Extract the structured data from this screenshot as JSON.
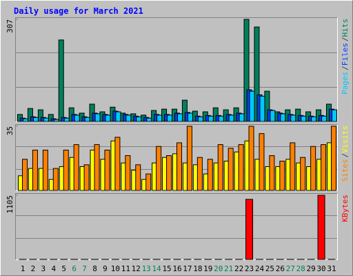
{
  "chart_data": [
    {
      "type": "bar",
      "title": "Daily usage for March 2021",
      "categories": [
        "1",
        "2",
        "3",
        "4",
        "5",
        "6",
        "7",
        "8",
        "9",
        "10",
        "11",
        "12",
        "13",
        "14",
        "15",
        "16",
        "17",
        "18",
        "19",
        "20",
        "21",
        "22",
        "23",
        "24",
        "25",
        "26",
        "27",
        "28",
        "29",
        "30",
        "31"
      ],
      "category_colors": [
        "#000000",
        "#000000",
        "#000000",
        "#000000",
        "#000000",
        "#00805c",
        "#00805c",
        "#000000",
        "#000000",
        "#000000",
        "#000000",
        "#000000",
        "#00805c",
        "#00805c",
        "#000000",
        "#000000",
        "#000000",
        "#000000",
        "#000000",
        "#00805c",
        "#00805c",
        "#000000",
        "#000000",
        "#000000",
        "#000000",
        "#000000",
        "#00805c",
        "#00805c",
        "#000000",
        "#000000",
        "#000000"
      ],
      "legend_separator": "/",
      "series": [
        {
          "name": "Hits",
          "color": "#00805c",
          "values": [
            21,
            39,
            35,
            21,
            245,
            41,
            25,
            52,
            29,
            43,
            25,
            23,
            19,
            33,
            37,
            37,
            64,
            31,
            29,
            41,
            35,
            41,
            307,
            284,
            91,
            29,
            35,
            37,
            29,
            35,
            52
          ]
        },
        {
          "name": "Files",
          "color": "#0040ff",
          "values": [
            10,
            14,
            12,
            8,
            12,
            21,
            14,
            25,
            21,
            31,
            21,
            16,
            12,
            21,
            21,
            25,
            27,
            16,
            18,
            18,
            21,
            25,
            95,
            80,
            35,
            25,
            21,
            18,
            16,
            18,
            37
          ]
        },
        {
          "name": "Pages",
          "color": "#00c8ff",
          "values": [
            8,
            12,
            10,
            6,
            10,
            19,
            12,
            23,
            19,
            29,
            19,
            14,
            10,
            19,
            19,
            23,
            25,
            14,
            16,
            16,
            19,
            23,
            91,
            76,
            33,
            23,
            19,
            16,
            14,
            16,
            35
          ]
        }
      ],
      "ylim": [
        0,
        307
      ],
      "yticks": [
        307
      ]
    },
    {
      "type": "bar",
      "legend_separator": "/",
      "series": [
        {
          "name": "Visits",
          "color": "#ffff00",
          "values": [
            8,
            12,
            12,
            6,
            13,
            18,
            13,
            22,
            17,
            27,
            15,
            11,
            6,
            15,
            18,
            20,
            15,
            14,
            9,
            15,
            16,
            21,
            27,
            17,
            13,
            13,
            17,
            15,
            13,
            17,
            26
          ]
        },
        {
          "name": "Sites",
          "color": "#ff8000",
          "values": [
            17,
            22,
            22,
            12,
            22,
            25,
            14,
            25,
            22,
            29,
            19,
            14,
            9,
            24,
            19,
            26,
            35,
            18,
            17,
            25,
            23,
            25,
            35,
            31,
            19,
            16,
            26,
            18,
            24,
            25,
            35
          ]
        }
      ],
      "ylim": [
        0,
        35
      ],
      "yticks": [
        35
      ]
    },
    {
      "type": "bar",
      "series": [
        {
          "name": "KBytes",
          "color": "#ff0000",
          "values": [
            2,
            2,
            2,
            2,
            2,
            2,
            2,
            2,
            2,
            2,
            2,
            2,
            2,
            2,
            2,
            2,
            2,
            2,
            2,
            2,
            2,
            2,
            1035,
            2,
            2,
            2,
            2,
            2,
            2,
            1105,
            2
          ]
        }
      ],
      "ylim": [
        0,
        1105
      ],
      "yticks": [
        1105
      ]
    }
  ]
}
